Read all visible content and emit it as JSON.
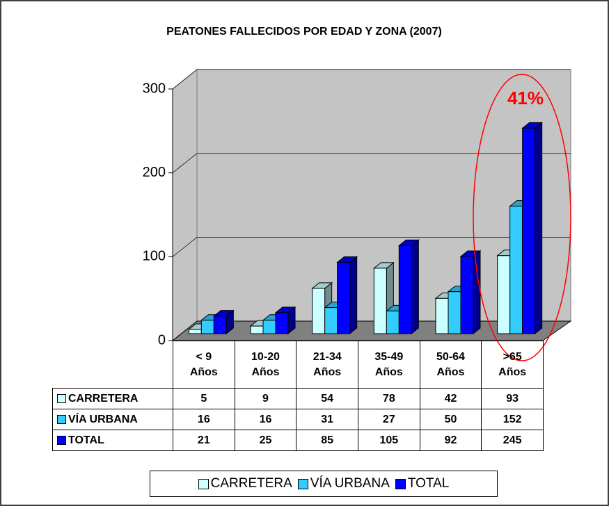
{
  "chart_data": {
    "type": "bar3d",
    "title": "PEATONES FALLECIDOS POR EDAD Y ZONA (2007)",
    "annotation": "41%",
    "categories": [
      "< 9\nAños",
      "10-20\nAños",
      "21-34\nAños",
      "35-49\nAños",
      "50-64\nAños",
      ">65\nAños"
    ],
    "series": [
      {
        "name": "CARRETERA",
        "color": "#ccffff",
        "values": [
          5,
          9,
          54,
          78,
          42,
          93
        ]
      },
      {
        "name": "VÍA URBANA",
        "color": "#33ccff",
        "values": [
          16,
          16,
          31,
          27,
          50,
          152
        ]
      },
      {
        "name": "TOTAL",
        "color": "#0000ff",
        "values": [
          21,
          25,
          85,
          105,
          92,
          245
        ]
      }
    ],
    "ylim": [
      0,
      300
    ],
    "yticks": [
      0,
      100,
      200,
      300
    ],
    "grid": true,
    "data_table": true,
    "legend": "bottom"
  }
}
